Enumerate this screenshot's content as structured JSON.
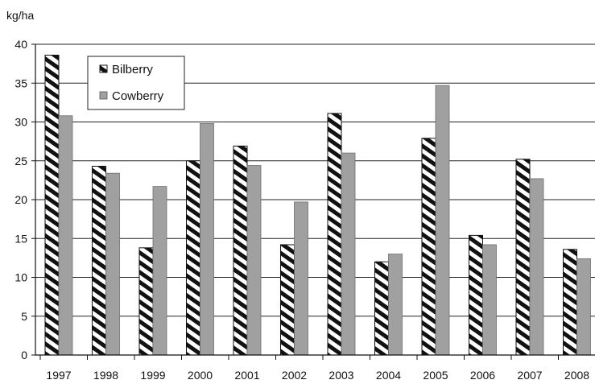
{
  "chart_data": {
    "type": "bar",
    "unit_label": "kg/ha",
    "categories": [
      "1997",
      "1998",
      "1999",
      "2000",
      "2001",
      "2002",
      "2003",
      "2004",
      "2005",
      "2006",
      "2007",
      "2008"
    ],
    "series": [
      {
        "name": "Bilberry",
        "pattern": "diagonal-stripes",
        "color": "#111111",
        "values": [
          38.6,
          24.3,
          13.8,
          25.0,
          26.9,
          14.2,
          31.1,
          12.0,
          27.9,
          15.4,
          25.2,
          13.6
        ]
      },
      {
        "name": "Cowberry",
        "pattern": "solid",
        "color": "#a0a0a0",
        "values": [
          30.8,
          23.4,
          21.7,
          29.8,
          24.4,
          19.7,
          26.0,
          13.0,
          34.7,
          14.2,
          22.7,
          12.4
        ]
      }
    ],
    "ylim": [
      0,
      40
    ],
    "yticks": [
      "0",
      "5",
      "10",
      "15",
      "20",
      "25",
      "30",
      "35",
      "40"
    ],
    "grid": true,
    "legend_position": "top-left"
  }
}
